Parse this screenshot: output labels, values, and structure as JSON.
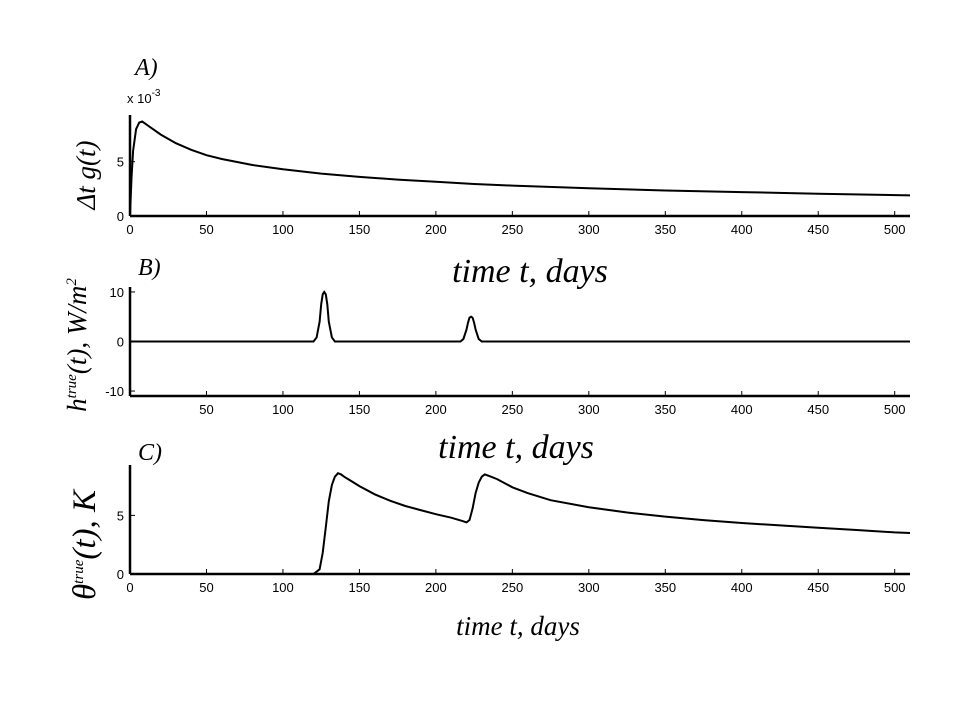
{
  "chart_data": [
    {
      "type": "line",
      "panel_label": "A)",
      "scale_note": {
        "prefix": "x  10",
        "exponent": "-3"
      },
      "ylabel": {
        "prefix": "Δt g",
        "suffix": "(t)"
      },
      "xlabel": "time  t, days",
      "xlim": [
        0,
        510
      ],
      "ylim": [
        0,
        9.3
      ],
      "xticks": [
        0,
        50,
        100,
        150,
        200,
        250,
        300,
        350,
        400,
        450,
        500
      ],
      "yticks": [
        0,
        5
      ],
      "series": [
        {
          "x": [
            0,
            1,
            2,
            4,
            6,
            8,
            10,
            15,
            20,
            30,
            40,
            50,
            60,
            80,
            100,
            125,
            150,
            175,
            200,
            225,
            250,
            300,
            350,
            400,
            450,
            510
          ],
          "y": [
            0,
            3.5,
            6.0,
            8.0,
            8.6,
            8.7,
            8.5,
            8.0,
            7.5,
            6.7,
            6.1,
            5.6,
            5.25,
            4.7,
            4.3,
            3.9,
            3.6,
            3.35,
            3.15,
            2.95,
            2.8,
            2.55,
            2.35,
            2.2,
            2.05,
            1.9
          ]
        }
      ]
    },
    {
      "type": "line",
      "panel_label": "B)",
      "ylabel": {
        "h": "h",
        "sup": "true",
        "mid": "(t),  W/m",
        "sup2": "2"
      },
      "xlabel": "time  t, days",
      "xlim": [
        0,
        510
      ],
      "ylim": [
        -11,
        11
      ],
      "xticks": [
        50,
        100,
        150,
        200,
        250,
        300,
        350,
        400,
        450,
        500
      ],
      "yticks": [
        -10,
        0,
        10
      ],
      "series": [
        {
          "x": [
            0,
            120,
            122,
            124,
            125,
            126,
            127,
            128,
            129,
            130,
            132,
            134,
            216,
            218,
            220,
            221,
            222,
            223,
            224,
            225,
            226,
            228,
            230,
            510
          ],
          "y": [
            0,
            0,
            0.8,
            4.0,
            7.5,
            9.5,
            10,
            9.5,
            7.5,
            4.0,
            0.8,
            0,
            0,
            0.5,
            2.4,
            3.8,
            4.8,
            5.0,
            4.8,
            3.8,
            2.4,
            0.5,
            0,
            0
          ]
        }
      ]
    },
    {
      "type": "line",
      "panel_label": "C)",
      "ylabel": {
        "theta": "θ",
        "sup": "true",
        "mid": "(t),  K"
      },
      "xlabel": "time  t, days",
      "xlim": [
        0,
        510
      ],
      "ylim": [
        0,
        9.3
      ],
      "xticks": [
        0,
        50,
        100,
        150,
        200,
        250,
        300,
        350,
        400,
        450,
        500
      ],
      "yticks": [
        0,
        5
      ],
      "series": [
        {
          "x": [
            0,
            120,
            124,
            126,
            128,
            130,
            132,
            134,
            136,
            138,
            140,
            145,
            150,
            160,
            170,
            180,
            190,
            200,
            210,
            218,
            220,
            222,
            224,
            226,
            228,
            230,
            232,
            235,
            240,
            250,
            260,
            275,
            300,
            325,
            350,
            375,
            400,
            425,
            450,
            475,
            500,
            510
          ],
          "y": [
            0,
            0,
            0.4,
            1.8,
            4.0,
            6.2,
            7.6,
            8.3,
            8.6,
            8.5,
            8.3,
            7.9,
            7.5,
            6.8,
            6.25,
            5.8,
            5.45,
            5.1,
            4.8,
            4.5,
            4.4,
            4.6,
            5.6,
            6.9,
            7.8,
            8.3,
            8.5,
            8.35,
            8.1,
            7.4,
            6.9,
            6.3,
            5.7,
            5.25,
            4.9,
            4.6,
            4.35,
            4.15,
            3.95,
            3.75,
            3.55,
            3.5
          ]
        }
      ]
    }
  ]
}
